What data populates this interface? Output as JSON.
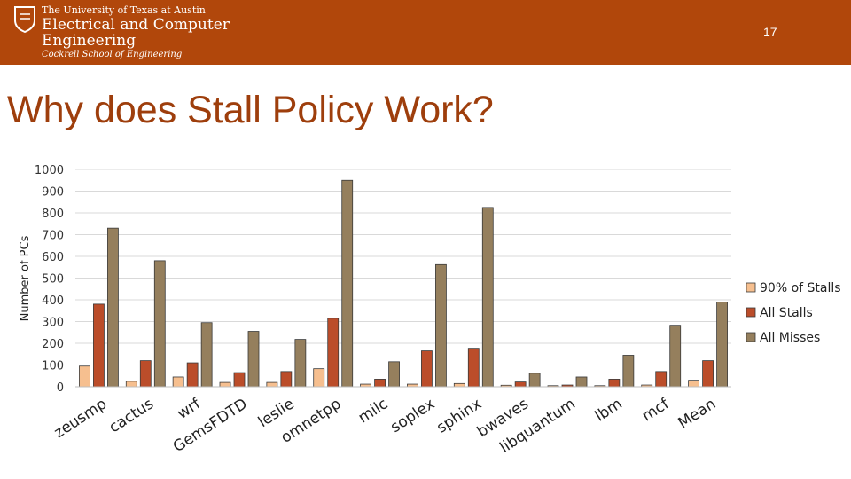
{
  "header": {
    "university": "The University of Texas at Austin",
    "department_line1": "Electrical and Computer",
    "department_line2": "Engineering",
    "school": "Cockrell School of Engineering",
    "slide_number": "17",
    "background_color": "#b1470b"
  },
  "title": "Why does Stall Policy Work?",
  "chart_data": {
    "type": "bar",
    "title": "",
    "xlabel": "",
    "ylabel": "Number of PCs",
    "ylim": [
      0,
      1000
    ],
    "yticks": [
      0,
      100,
      200,
      300,
      400,
      500,
      600,
      700,
      800,
      900,
      1000
    ],
    "grid": true,
    "legend_position": "right",
    "categories": [
      "zeusmp",
      "cactus",
      "wrf",
      "GemsFDTD",
      "leslie",
      "omnetpp",
      "milc",
      "soplex",
      "sphinx",
      "bwaves",
      "libquantum",
      "lbm",
      "mcf",
      "Mean"
    ],
    "series": [
      {
        "name": "90% of Stalls",
        "color": "#f6bf8f",
        "values": [
          95,
          25,
          45,
          20,
          20,
          83,
          12,
          12,
          15,
          7,
          5,
          5,
          8,
          30
        ]
      },
      {
        "name": "All Stalls",
        "color": "#bb4d2a",
        "values": [
          380,
          120,
          110,
          65,
          70,
          315,
          35,
          165,
          177,
          22,
          8,
          35,
          70,
          120
        ]
      },
      {
        "name": "All Misses",
        "color": "#957f5d",
        "values": [
          730,
          580,
          295,
          255,
          218,
          950,
          115,
          562,
          825,
          62,
          45,
          145,
          283,
          390
        ]
      }
    ]
  }
}
